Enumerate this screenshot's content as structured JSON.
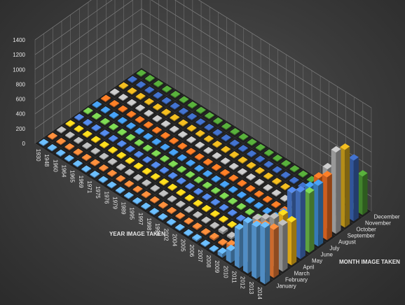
{
  "chart_data": {
    "type": "bar",
    "subtype": "3d-column",
    "xlabel": "YEAR IMAGE TAKEN",
    "ylabel": "MONTH IMAGE TAKEN",
    "zlim": [
      0,
      1400
    ],
    "z_ticks": [
      "0",
      "200",
      "400",
      "600",
      "800",
      "1000",
      "1200",
      "1400"
    ],
    "grid": true,
    "years": [
      "1930",
      "1948",
      "1960",
      "1964",
      "1965",
      "1969",
      "1971",
      "1975",
      "1976",
      "1979",
      "1989",
      "1995",
      "1997",
      "1998",
      "1999",
      "2002",
      "2004",
      "2005",
      "2006",
      "2007",
      "2008",
      "2009",
      "2010",
      "2011",
      "2012",
      "2013",
      "2014"
    ],
    "months": [
      "January",
      "February",
      "March",
      "April",
      "May",
      "June",
      "July",
      "August",
      "September",
      "October",
      "November",
      "December"
    ],
    "series_colors": [
      "#5ea6e6",
      "#ef7d35",
      "#a9a9a9",
      "#ffc21a",
      "#4a7ad0",
      "#6fbf4a",
      "#3f8fd8",
      "#f26f22",
      "#b3b3b3",
      "#d4a61c",
      "#3a64b5",
      "#4d9a34"
    ],
    "series": [
      {
        "name": "January",
        "values": [
          1,
          0,
          1,
          1,
          0,
          1,
          0,
          1,
          0,
          1,
          0,
          1,
          0,
          0,
          1,
          0,
          1,
          0,
          20,
          6,
          12,
          50,
          160,
          520,
          680,
          700,
          760
        ]
      },
      {
        "name": "February",
        "values": [
          0,
          1,
          0,
          1,
          1,
          0,
          1,
          0,
          1,
          0,
          1,
          0,
          1,
          1,
          0,
          1,
          1,
          15,
          0,
          22,
          14,
          70,
          240,
          420,
          560,
          620,
          650
        ]
      },
      {
        "name": "March",
        "values": [
          1,
          0,
          1,
          0,
          1,
          1,
          0,
          1,
          1,
          0,
          1,
          0,
          1,
          0,
          1,
          0,
          1,
          0,
          5,
          30,
          24,
          90,
          300,
          480,
          560,
          640,
          620
        ]
      },
      {
        "name": "April",
        "values": [
          1,
          1,
          0,
          1,
          0,
          1,
          1,
          0,
          1,
          1,
          0,
          1,
          1,
          1,
          0,
          1,
          0,
          1,
          0,
          0,
          40,
          0,
          140,
          0,
          420,
          600,
          580
        ]
      },
      {
        "name": "May",
        "values": [
          0,
          1,
          1,
          0,
          1,
          0,
          1,
          1,
          0,
          1,
          1,
          0,
          1,
          0,
          1,
          1,
          0,
          1,
          1,
          5,
          0,
          10,
          60,
          200,
          460,
          820,
          900
        ]
      },
      {
        "name": "June",
        "values": [
          1,
          0,
          1,
          1,
          0,
          1,
          0,
          1,
          1,
          0,
          1,
          1,
          0,
          1,
          1,
          0,
          1,
          0,
          1,
          0,
          8,
          5,
          30,
          100,
          380,
          700,
          800
        ]
      },
      {
        "name": "July",
        "values": [
          1,
          1,
          0,
          1,
          1,
          0,
          1,
          0,
          1,
          1,
          0,
          1,
          1,
          0,
          1,
          1,
          0,
          1,
          0,
          12,
          6,
          20,
          50,
          150,
          380,
          720,
          820
        ]
      },
      {
        "name": "August",
        "values": [
          0,
          1,
          1,
          0,
          1,
          1,
          0,
          1,
          0,
          1,
          1,
          0,
          1,
          1,
          0,
          1,
          1,
          0,
          1,
          0,
          0,
          15,
          40,
          120,
          400,
          760,
          850
        ]
      },
      {
        "name": "September",
        "values": [
          1,
          0,
          1,
          1,
          0,
          1,
          1,
          0,
          1,
          0,
          1,
          1,
          0,
          1,
          1,
          0,
          1,
          1,
          0,
          1,
          0,
          0,
          20,
          80,
          320,
          800,
          1100
        ]
      },
      {
        "name": "October",
        "values": [
          1,
          1,
          0,
          1,
          1,
          0,
          1,
          1,
          0,
          1,
          0,
          1,
          1,
          0,
          1,
          1,
          0,
          1,
          1,
          0,
          1,
          0,
          0,
          5,
          30,
          0,
          1050
        ]
      },
      {
        "name": "November",
        "values": [
          0,
          1,
          1,
          0,
          1,
          1,
          0,
          1,
          1,
          0,
          1,
          0,
          1,
          1,
          0,
          1,
          1,
          0,
          1,
          1,
          0,
          1,
          0,
          2,
          10,
          60,
          820
        ]
      },
      {
        "name": "December",
        "values": [
          1,
          0,
          1,
          1,
          0,
          1,
          1,
          0,
          1,
          1,
          0,
          1,
          0,
          1,
          1,
          0,
          1,
          1,
          0,
          1,
          1,
          0,
          1,
          0,
          1,
          5,
          520
        ]
      }
    ]
  }
}
